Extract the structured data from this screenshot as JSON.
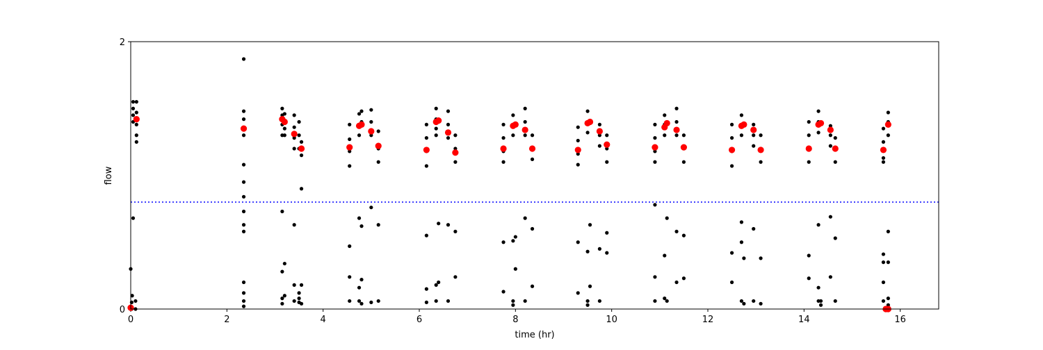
{
  "chart_data": {
    "type": "scatter",
    "x_label": "time (hr)",
    "y_label": "flow",
    "xlim": [
      0,
      16.8
    ],
    "ylim": [
      0,
      2
    ],
    "xticks": [
      0,
      2,
      4,
      6,
      8,
      10,
      12,
      14,
      16
    ],
    "yticks": [
      0,
      2
    ],
    "hline": {
      "value": 0.8,
      "color": "#0000ff"
    },
    "series": [
      {
        "color": "#000000",
        "size": 2.6,
        "x": [
          0.05,
          0.05,
          0.05,
          0.05,
          0.12,
          0.12,
          0.12,
          0.12,
          0.12,
          0.02,
          0.02,
          0.03,
          0.0,
          0.05,
          0.1,
          0.1,
          2.35,
          2.35,
          2.35,
          2.35,
          2.35,
          2.35,
          2.35,
          2.35,
          2.35,
          2.35,
          2.35,
          2.35,
          2.35,
          2.35,
          3.15,
          3.15,
          3.15,
          3.15,
          3.15,
          3.15,
          3.15,
          3.15,
          3.2,
          3.2,
          3.2,
          3.2,
          3.2,
          3.4,
          3.4,
          3.4,
          3.4,
          3.4,
          3.4,
          3.4,
          3.5,
          3.5,
          3.5,
          3.5,
          3.5,
          3.5,
          3.55,
          3.55,
          3.55,
          3.55,
          3.55,
          4.55,
          4.55,
          4.55,
          4.55,
          4.55,
          4.55,
          4.55,
          4.75,
          4.75,
          4.75,
          4.75,
          4.75,
          4.75,
          4.8,
          4.8,
          4.8,
          4.8,
          4.8,
          5.0,
          5.0,
          5.0,
          5.0,
          5.0,
          5.15,
          5.15,
          5.15,
          5.15,
          5.15,
          6.15,
          6.15,
          6.15,
          6.15,
          6.15,
          6.15,
          6.15,
          6.35,
          6.35,
          6.35,
          6.35,
          6.35,
          6.35,
          6.4,
          6.4,
          6.6,
          6.6,
          6.6,
          6.6,
          6.6,
          6.75,
          6.75,
          6.75,
          6.75,
          6.75,
          7.75,
          7.75,
          7.75,
          7.75,
          7.75,
          7.75,
          7.95,
          7.95,
          7.95,
          7.95,
          7.95,
          7.95,
          8.0,
          8.0,
          8.2,
          8.2,
          8.2,
          8.2,
          8.2,
          8.35,
          8.35,
          8.35,
          8.35,
          8.35,
          9.3,
          9.3,
          9.3,
          9.3,
          9.3,
          9.3,
          9.5,
          9.5,
          9.5,
          9.5,
          9.5,
          9.5,
          9.55,
          9.55,
          9.75,
          9.75,
          9.75,
          9.75,
          9.75,
          9.9,
          9.9,
          9.9,
          9.9,
          9.9,
          10.9,
          10.9,
          10.9,
          10.9,
          10.9,
          10.9,
          10.9,
          11.1,
          11.1,
          11.1,
          11.1,
          11.1,
          11.15,
          11.15,
          11.35,
          11.35,
          11.35,
          11.35,
          11.35,
          11.5,
          11.5,
          11.5,
          11.5,
          11.5,
          12.5,
          12.5,
          12.5,
          12.5,
          12.5,
          12.5,
          12.7,
          12.7,
          12.7,
          12.7,
          12.7,
          12.7,
          12.75,
          12.75,
          12.95,
          12.95,
          12.95,
          12.95,
          12.95,
          13.1,
          13.1,
          13.1,
          13.1,
          13.1,
          14.1,
          14.1,
          14.1,
          14.1,
          14.1,
          14.1,
          14.3,
          14.3,
          14.3,
          14.3,
          14.3,
          14.3,
          14.35,
          14.35,
          14.55,
          14.55,
          14.55,
          14.55,
          14.55,
          14.65,
          14.65,
          14.65,
          14.65,
          14.65,
          15.65,
          15.65,
          15.65,
          15.65,
          15.65,
          15.65,
          15.65,
          15.65,
          15.75,
          15.75,
          15.75,
          15.75,
          15.75,
          15.75,
          15.75
        ],
        "values": [
          1.55,
          1.5,
          1.45,
          1.4,
          1.55,
          1.47,
          1.38,
          1.3,
          1.25,
          0.0,
          0.05,
          0.1,
          0.3,
          0.68,
          0.06,
          0.0,
          1.87,
          1.48,
          1.42,
          1.3,
          1.08,
          0.95,
          0.84,
          0.73,
          0.63,
          0.58,
          0.2,
          0.12,
          0.06,
          0.02,
          1.5,
          1.45,
          1.38,
          1.3,
          0.73,
          0.28,
          0.08,
          0.04,
          1.46,
          1.35,
          1.3,
          0.34,
          0.1,
          1.45,
          1.36,
          1.28,
          1.2,
          0.63,
          0.18,
          0.06,
          1.4,
          1.3,
          1.2,
          0.12,
          0.08,
          0.05,
          1.25,
          1.15,
          0.9,
          0.18,
          0.04,
          1.38,
          1.27,
          1.18,
          1.07,
          0.47,
          0.24,
          0.06,
          1.46,
          1.38,
          1.3,
          0.68,
          0.16,
          0.06,
          1.48,
          1.4,
          0.62,
          0.22,
          0.04,
          1.49,
          1.4,
          1.3,
          0.76,
          0.05,
          1.33,
          1.2,
          1.1,
          0.63,
          0.06,
          1.38,
          1.28,
          1.18,
          1.07,
          0.55,
          0.15,
          0.05,
          1.5,
          1.42,
          1.35,
          1.3,
          0.18,
          0.06,
          0.64,
          0.2,
          1.48,
          1.38,
          1.28,
          0.63,
          0.06,
          1.3,
          1.2,
          1.1,
          0.58,
          0.24,
          1.38,
          1.28,
          1.18,
          1.1,
          0.5,
          0.13,
          1.45,
          1.38,
          1.3,
          0.51,
          0.06,
          0.03,
          0.3,
          0.54,
          1.5,
          1.4,
          1.3,
          0.68,
          0.06,
          1.3,
          1.2,
          1.12,
          0.6,
          0.17,
          1.36,
          1.26,
          1.16,
          1.08,
          0.5,
          0.12,
          1.48,
          1.4,
          1.32,
          0.43,
          0.06,
          0.03,
          0.17,
          0.63,
          1.38,
          1.3,
          1.22,
          0.45,
          0.06,
          1.3,
          1.2,
          1.1,
          0.57,
          0.42,
          1.38,
          1.28,
          1.18,
          1.1,
          0.78,
          0.24,
          0.06,
          1.45,
          1.38,
          1.3,
          0.4,
          0.08,
          0.68,
          0.06,
          1.5,
          1.4,
          1.3,
          0.58,
          0.2,
          1.3,
          1.2,
          1.1,
          0.55,
          0.23,
          1.38,
          1.28,
          1.18,
          1.07,
          0.42,
          0.2,
          1.45,
          1.38,
          1.3,
          0.65,
          0.5,
          0.06,
          0.38,
          0.04,
          1.38,
          1.3,
          1.22,
          0.6,
          0.06,
          1.3,
          1.2,
          1.1,
          0.38,
          0.04,
          1.4,
          1.3,
          1.2,
          1.1,
          0.4,
          0.23,
          1.48,
          1.4,
          1.32,
          0.63,
          0.16,
          0.06,
          0.06,
          0.03,
          1.37,
          1.3,
          1.22,
          0.69,
          0.24,
          1.28,
          1.2,
          1.1,
          0.53,
          0.06,
          1.35,
          1.25,
          1.13,
          1.1,
          0.41,
          0.35,
          0.2,
          0.06,
          1.47,
          1.4,
          1.3,
          0.58,
          0.35,
          0.08,
          0.03
        ]
      },
      {
        "color": "#ff0000",
        "size": 4.6,
        "x": [
          0.12,
          2.35,
          3.15,
          3.2,
          3.4,
          3.55,
          4.55,
          4.75,
          4.8,
          5.0,
          5.15,
          6.15,
          6.35,
          6.4,
          6.6,
          6.75,
          7.75,
          7.95,
          8.0,
          8.2,
          8.35,
          9.3,
          9.5,
          9.55,
          9.75,
          9.9,
          10.9,
          11.1,
          11.15,
          11.35,
          11.5,
          12.5,
          12.7,
          12.75,
          12.95,
          13.1,
          14.1,
          14.3,
          14.35,
          14.55,
          14.65,
          15.65,
          15.75,
          0.0,
          15.7,
          15.75
        ],
        "values": [
          1.42,
          1.35,
          1.42,
          1.4,
          1.31,
          1.2,
          1.21,
          1.37,
          1.38,
          1.33,
          1.22,
          1.19,
          1.4,
          1.41,
          1.32,
          1.17,
          1.2,
          1.37,
          1.38,
          1.34,
          1.2,
          1.19,
          1.39,
          1.4,
          1.33,
          1.23,
          1.21,
          1.36,
          1.39,
          1.34,
          1.21,
          1.19,
          1.37,
          1.38,
          1.34,
          1.19,
          1.2,
          1.38,
          1.39,
          1.34,
          1.2,
          1.19,
          1.38,
          0.01,
          0.0,
          0.0
        ]
      }
    ]
  }
}
